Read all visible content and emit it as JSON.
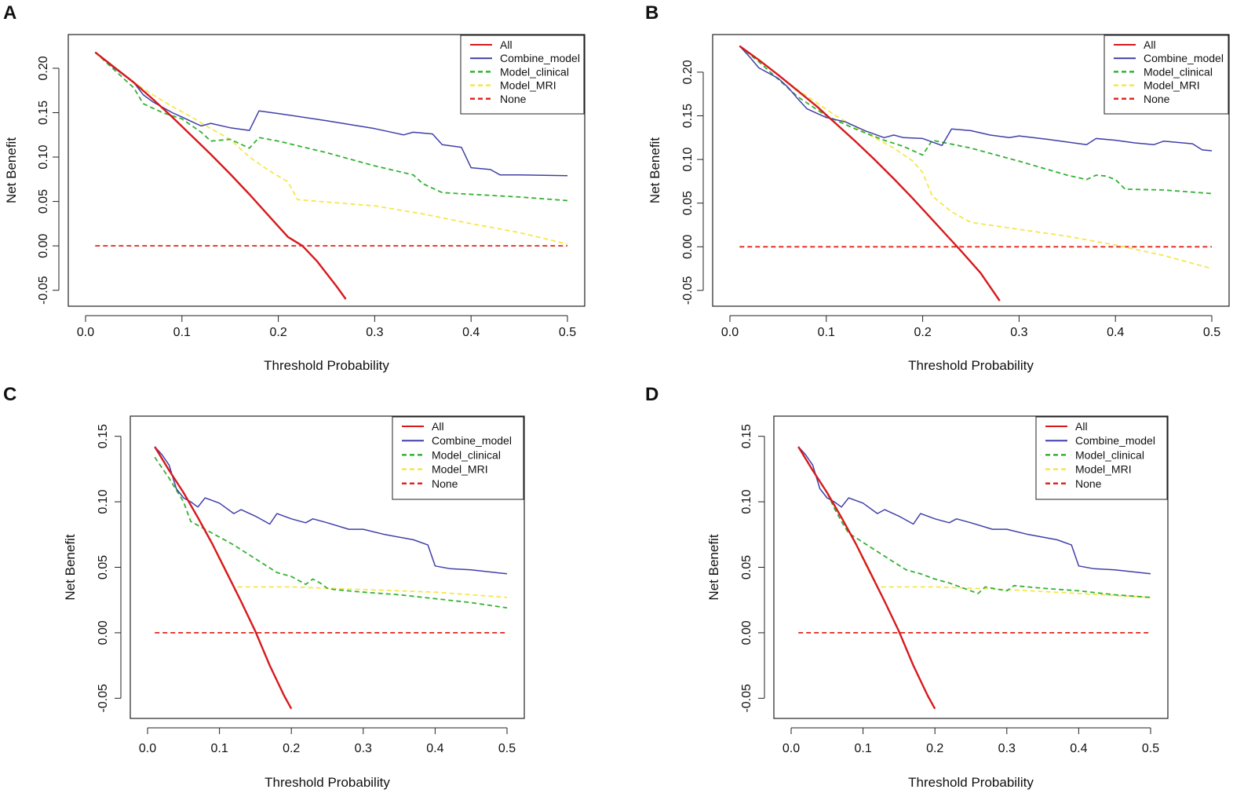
{
  "chart_data": [
    {
      "panel": "A",
      "type": "line",
      "xlabel": "Threshold Probability",
      "ylabel": "Net Benefit",
      "xlim": [
        0.0,
        0.5
      ],
      "ylim": [
        -0.06,
        0.23
      ],
      "xticks": [
        "0.0",
        "0.1",
        "0.2",
        "0.3",
        "0.4",
        "0.5"
      ],
      "yticks": [
        "-0.05",
        "0.00",
        "0.05",
        "0.10",
        "0.15",
        "0.20"
      ],
      "legend_position": "top-right",
      "series": [
        {
          "name": "All",
          "color": "#d7191c",
          "dash": "solid",
          "x": [
            0.01,
            0.03,
            0.05,
            0.07,
            0.09,
            0.11,
            0.13,
            0.15,
            0.17,
            0.19,
            0.21,
            0.225,
            0.24,
            0.26,
            0.27
          ],
          "y": [
            0.218,
            0.201,
            0.184,
            0.165,
            0.145,
            0.124,
            0.103,
            0.081,
            0.058,
            0.034,
            0.01,
            0.0,
            -0.017,
            -0.045,
            -0.06
          ]
        },
        {
          "name": "Combine_model",
          "color": "#3f3fa8",
          "dash": "solid",
          "x": [
            0.01,
            0.03,
            0.05,
            0.06,
            0.07,
            0.08,
            0.09,
            0.1,
            0.11,
            0.12,
            0.13,
            0.15,
            0.17,
            0.18,
            0.2,
            0.25,
            0.3,
            0.33,
            0.34,
            0.36,
            0.37,
            0.39,
            0.4,
            0.42,
            0.43,
            0.45,
            0.5
          ],
          "y": [
            0.218,
            0.2,
            0.184,
            0.17,
            0.162,
            0.156,
            0.15,
            0.145,
            0.14,
            0.135,
            0.138,
            0.133,
            0.13,
            0.152,
            0.149,
            0.141,
            0.132,
            0.125,
            0.128,
            0.126,
            0.114,
            0.111,
            0.088,
            0.086,
            0.08,
            0.08,
            0.079
          ]
        },
        {
          "name": "Model_clinical",
          "color": "#33b233",
          "dash": "dash",
          "x": [
            0.01,
            0.03,
            0.05,
            0.06,
            0.08,
            0.1,
            0.12,
            0.13,
            0.15,
            0.17,
            0.18,
            0.2,
            0.25,
            0.3,
            0.34,
            0.35,
            0.37,
            0.4,
            0.45,
            0.5
          ],
          "y": [
            0.218,
            0.198,
            0.178,
            0.16,
            0.15,
            0.143,
            0.128,
            0.118,
            0.12,
            0.11,
            0.122,
            0.118,
            0.105,
            0.09,
            0.08,
            0.07,
            0.06,
            0.058,
            0.055,
            0.051
          ]
        },
        {
          "name": "Model_MRI",
          "color": "#f5e74a",
          "dash": "dash",
          "x": [
            0.01,
            0.03,
            0.05,
            0.07,
            0.09,
            0.11,
            0.13,
            0.15,
            0.17,
            0.19,
            0.21,
            0.22,
            0.3,
            0.35,
            0.4,
            0.45,
            0.5
          ],
          "y": [
            0.218,
            0.201,
            0.184,
            0.17,
            0.157,
            0.145,
            0.132,
            0.12,
            0.1,
            0.085,
            0.072,
            0.052,
            0.045,
            0.036,
            0.025,
            0.015,
            0.002
          ]
        },
        {
          "name": "None",
          "color": "#e0261e",
          "dash": "dash",
          "x": [
            0.01,
            0.5
          ],
          "y": [
            0.0,
            0.0
          ]
        }
      ]
    },
    {
      "panel": "B",
      "type": "line",
      "xlabel": "Threshold Probability",
      "ylabel": "Net Benefit",
      "xlim": [
        0.0,
        0.5
      ],
      "ylim": [
        -0.06,
        0.235
      ],
      "xticks": [
        "0.0",
        "0.1",
        "0.2",
        "0.3",
        "0.4",
        "0.5"
      ],
      "yticks": [
        "-0.05",
        "0.00",
        "0.05",
        "0.10",
        "0.15",
        "0.20"
      ],
      "legend_position": "top-right",
      "series": [
        {
          "name": "All",
          "color": "#d7191c",
          "dash": "solid",
          "x": [
            0.01,
            0.03,
            0.05,
            0.07,
            0.09,
            0.11,
            0.13,
            0.15,
            0.17,
            0.19,
            0.21,
            0.23,
            0.24,
            0.26,
            0.28
          ],
          "y": [
            0.23,
            0.214,
            0.197,
            0.179,
            0.161,
            0.141,
            0.121,
            0.1,
            0.078,
            0.055,
            0.031,
            0.007,
            -0.005,
            -0.03,
            -0.062
          ]
        },
        {
          "name": "Combine_model",
          "color": "#3f3fa8",
          "dash": "solid",
          "x": [
            0.01,
            0.02,
            0.03,
            0.05,
            0.06,
            0.07,
            0.08,
            0.09,
            0.1,
            0.12,
            0.14,
            0.16,
            0.17,
            0.18,
            0.2,
            0.22,
            0.23,
            0.25,
            0.27,
            0.29,
            0.3,
            0.33,
            0.35,
            0.37,
            0.38,
            0.4,
            0.42,
            0.44,
            0.45,
            0.48,
            0.49,
            0.5
          ],
          "y": [
            0.23,
            0.218,
            0.205,
            0.193,
            0.183,
            0.17,
            0.158,
            0.153,
            0.148,
            0.143,
            0.133,
            0.125,
            0.128,
            0.125,
            0.124,
            0.116,
            0.135,
            0.133,
            0.128,
            0.125,
            0.127,
            0.123,
            0.12,
            0.117,
            0.124,
            0.122,
            0.119,
            0.117,
            0.121,
            0.118,
            0.111,
            0.11
          ]
        },
        {
          "name": "Model_clinical",
          "color": "#33b233",
          "dash": "dash",
          "x": [
            0.01,
            0.03,
            0.05,
            0.07,
            0.1,
            0.13,
            0.16,
            0.18,
            0.2,
            0.21,
            0.25,
            0.3,
            0.35,
            0.37,
            0.38,
            0.39,
            0.4,
            0.41,
            0.45,
            0.5
          ],
          "y": [
            0.23,
            0.212,
            0.192,
            0.172,
            0.15,
            0.135,
            0.122,
            0.115,
            0.105,
            0.122,
            0.113,
            0.098,
            0.082,
            0.077,
            0.082,
            0.081,
            0.077,
            0.066,
            0.065,
            0.061
          ]
        },
        {
          "name": "Model_MRI",
          "color": "#f5e74a",
          "dash": "dash",
          "x": [
            0.01,
            0.03,
            0.05,
            0.07,
            0.09,
            0.11,
            0.13,
            0.15,
            0.17,
            0.19,
            0.2,
            0.21,
            0.23,
            0.25,
            0.3,
            0.35,
            0.4,
            0.45,
            0.5
          ],
          "y": [
            0.23,
            0.214,
            0.197,
            0.18,
            0.165,
            0.15,
            0.137,
            0.125,
            0.113,
            0.098,
            0.085,
            0.058,
            0.04,
            0.028,
            0.02,
            0.012,
            0.002,
            -0.01,
            -0.025
          ]
        },
        {
          "name": "None",
          "color": "#e0261e",
          "dash": "dash",
          "x": [
            0.01,
            0.5
          ],
          "y": [
            0.0,
            0.0
          ]
        }
      ]
    },
    {
      "panel": "C",
      "type": "line",
      "xlabel": "Threshold Probability",
      "ylabel": "Net Benefit",
      "xlim": [
        0.0,
        0.5
      ],
      "ylim": [
        -0.06,
        0.16
      ],
      "xticks": [
        "0.0",
        "0.1",
        "0.2",
        "0.3",
        "0.4",
        "0.5"
      ],
      "yticks": [
        "-0.05",
        "0.00",
        "0.05",
        "0.10",
        "0.15"
      ],
      "legend_position": "top-right",
      "series": [
        {
          "name": "All",
          "color": "#d7191c",
          "dash": "solid",
          "x": [
            0.01,
            0.03,
            0.05,
            0.07,
            0.09,
            0.11,
            0.13,
            0.15,
            0.17,
            0.19,
            0.2
          ],
          "y": [
            0.142,
            0.124,
            0.107,
            0.088,
            0.068,
            0.046,
            0.024,
            0.001,
            -0.025,
            -0.048,
            -0.058
          ]
        },
        {
          "name": "Combine_model",
          "color": "#3f3fa8",
          "dash": "solid",
          "x": [
            0.01,
            0.02,
            0.03,
            0.04,
            0.05,
            0.06,
            0.07,
            0.08,
            0.1,
            0.12,
            0.13,
            0.15,
            0.17,
            0.18,
            0.2,
            0.22,
            0.23,
            0.25,
            0.28,
            0.3,
            0.33,
            0.37,
            0.39,
            0.4,
            0.42,
            0.45,
            0.5
          ],
          "y": [
            0.142,
            0.136,
            0.128,
            0.11,
            0.103,
            0.1,
            0.096,
            0.103,
            0.099,
            0.091,
            0.094,
            0.089,
            0.083,
            0.091,
            0.087,
            0.084,
            0.087,
            0.084,
            0.079,
            0.079,
            0.075,
            0.071,
            0.067,
            0.051,
            0.049,
            0.048,
            0.045
          ]
        },
        {
          "name": "Model_clinical",
          "color": "#33b233",
          "dash": "dash",
          "x": [
            0.01,
            0.03,
            0.05,
            0.06,
            0.08,
            0.1,
            0.12,
            0.14,
            0.16,
            0.18,
            0.2,
            0.22,
            0.23,
            0.24,
            0.25,
            0.26,
            0.3,
            0.35,
            0.4,
            0.45,
            0.5
          ],
          "y": [
            0.134,
            0.118,
            0.1,
            0.085,
            0.079,
            0.073,
            0.067,
            0.06,
            0.053,
            0.046,
            0.043,
            0.037,
            0.041,
            0.038,
            0.034,
            0.033,
            0.031,
            0.029,
            0.026,
            0.023,
            0.019
          ]
        },
        {
          "name": "Model_MRI",
          "color": "#f5e74a",
          "dash": "dash",
          "x": [
            0.01,
            0.03,
            0.05,
            0.07,
            0.09,
            0.1,
            0.11,
            0.12,
            0.2,
            0.3,
            0.4,
            0.5
          ],
          "y": [
            0.142,
            0.124,
            0.107,
            0.088,
            0.068,
            0.056,
            0.045,
            0.035,
            0.035,
            0.033,
            0.031,
            0.027
          ]
        },
        {
          "name": "None",
          "color": "#e0261e",
          "dash": "dash",
          "x": [
            0.01,
            0.5
          ],
          "y": [
            0.0,
            0.0
          ]
        }
      ]
    },
    {
      "panel": "D",
      "type": "line",
      "xlabel": "Threshold Probability",
      "ylabel": "Net Benefit",
      "xlim": [
        0.0,
        0.5
      ],
      "ylim": [
        -0.06,
        0.16
      ],
      "xticks": [
        "0.0",
        "0.1",
        "0.2",
        "0.3",
        "0.4",
        "0.5"
      ],
      "yticks": [
        "-0.05",
        "0.00",
        "0.05",
        "0.10",
        "0.15"
      ],
      "legend_position": "top-right",
      "series": [
        {
          "name": "All",
          "color": "#d7191c",
          "dash": "solid",
          "x": [
            0.01,
            0.03,
            0.05,
            0.07,
            0.09,
            0.11,
            0.13,
            0.15,
            0.17,
            0.19,
            0.2
          ],
          "y": [
            0.142,
            0.124,
            0.107,
            0.088,
            0.068,
            0.046,
            0.024,
            0.001,
            -0.025,
            -0.048,
            -0.058
          ]
        },
        {
          "name": "Combine_model",
          "color": "#3f3fa8",
          "dash": "solid",
          "x": [
            0.01,
            0.02,
            0.03,
            0.04,
            0.05,
            0.06,
            0.07,
            0.08,
            0.1,
            0.12,
            0.13,
            0.15,
            0.17,
            0.18,
            0.2,
            0.22,
            0.23,
            0.25,
            0.28,
            0.3,
            0.33,
            0.37,
            0.39,
            0.4,
            0.42,
            0.45,
            0.5
          ],
          "y": [
            0.142,
            0.136,
            0.128,
            0.11,
            0.103,
            0.1,
            0.096,
            0.103,
            0.099,
            0.091,
            0.094,
            0.089,
            0.083,
            0.091,
            0.087,
            0.084,
            0.087,
            0.084,
            0.079,
            0.079,
            0.075,
            0.071,
            0.067,
            0.051,
            0.049,
            0.048,
            0.045
          ]
        },
        {
          "name": "Model_clinical",
          "color": "#33b233",
          "dash": "dash",
          "x": [
            0.01,
            0.03,
            0.05,
            0.06,
            0.07,
            0.08,
            0.1,
            0.12,
            0.14,
            0.16,
            0.18,
            0.2,
            0.22,
            0.24,
            0.26,
            0.27,
            0.29,
            0.3,
            0.31,
            0.35,
            0.4,
            0.45,
            0.5
          ],
          "y": [
            0.142,
            0.124,
            0.107,
            0.095,
            0.085,
            0.076,
            0.069,
            0.062,
            0.055,
            0.048,
            0.045,
            0.041,
            0.038,
            0.034,
            0.03,
            0.035,
            0.033,
            0.032,
            0.036,
            0.034,
            0.032,
            0.029,
            0.027
          ]
        },
        {
          "name": "Model_MRI",
          "color": "#f5e74a",
          "dash": "dash",
          "x": [
            0.01,
            0.03,
            0.05,
            0.07,
            0.09,
            0.1,
            0.11,
            0.12,
            0.2,
            0.3,
            0.4,
            0.5
          ],
          "y": [
            0.142,
            0.124,
            0.107,
            0.088,
            0.068,
            0.056,
            0.045,
            0.035,
            0.035,
            0.033,
            0.03,
            0.027
          ]
        },
        {
          "name": "None",
          "color": "#e0261e",
          "dash": "dash",
          "x": [
            0.01,
            0.5
          ],
          "y": [
            0.0,
            0.0
          ]
        }
      ]
    }
  ]
}
